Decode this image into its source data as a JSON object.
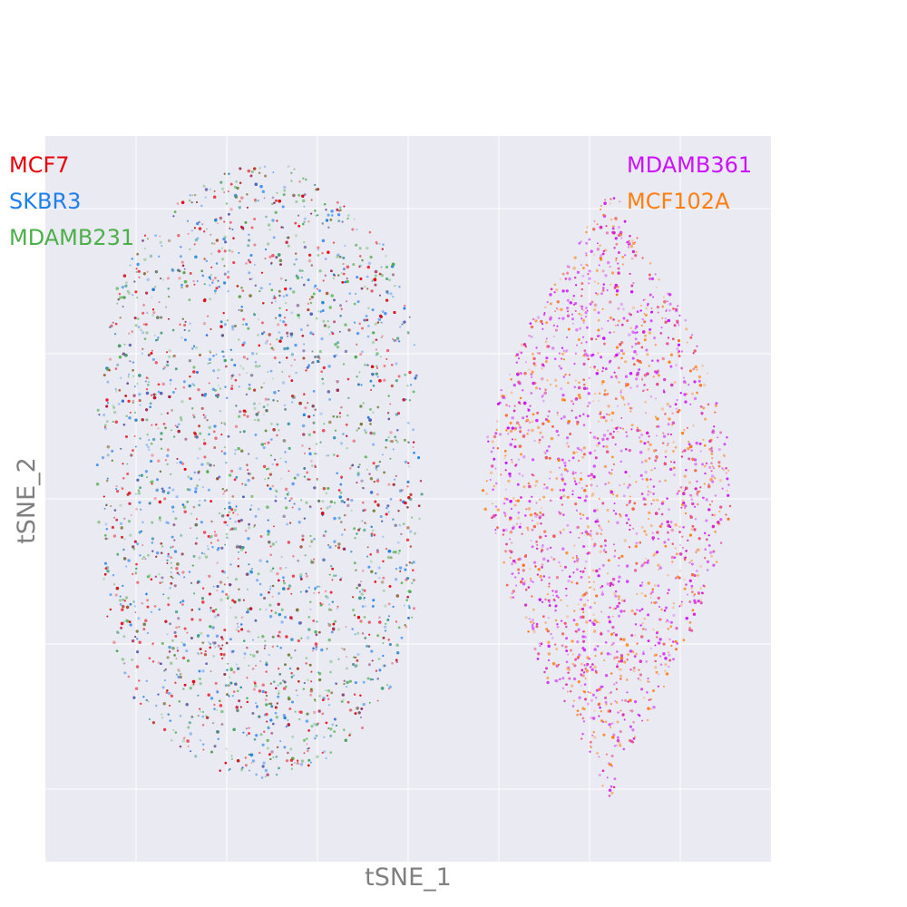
{
  "chart_data": {
    "type": "scatter",
    "title": "",
    "xlabel": "tSNE_1",
    "ylabel": "tSNE_2",
    "xlim": [
      -50,
      50
    ],
    "ylim": [
      -50,
      50
    ],
    "grid": true,
    "background": "#eaeaf2",
    "ticks_labeled": false,
    "x_gridlines": [
      -37.5,
      -25,
      -12.5,
      0,
      12.5,
      25,
      37.5
    ],
    "y_gridlines": [
      -40,
      -20,
      0,
      20,
      40
    ],
    "legend_left": {
      "placement": "top-left",
      "entries": [
        "MCF7",
        "SKBR3",
        "MDAMB231"
      ]
    },
    "legend_right": {
      "placement": "top-right",
      "entries": [
        "MDAMB361",
        "MCF102A"
      ]
    },
    "clusters": [
      {
        "name": "left",
        "center": [
          -20.5,
          4.0
        ],
        "half_width": 22.0,
        "half_height": 42.5,
        "series": [
          "MCF7",
          "SKBR3",
          "MDAMB231"
        ]
      },
      {
        "name": "right",
        "center": [
          27.5,
          0.5
        ],
        "half_width": 17.0,
        "half_height": 41.5,
        "series": [
          "MDAMB361",
          "MCF102A"
        ]
      }
    ],
    "series": [
      {
        "name": "MCF7",
        "color": "#e8000b",
        "cluster": "left",
        "count": 1600
      },
      {
        "name": "SKBR3",
        "color": "#1f7ff0",
        "cluster": "left",
        "count": 1600
      },
      {
        "name": "MDAMB231",
        "color": "#4daf4a",
        "cluster": "left",
        "count": 1600
      },
      {
        "name": "MDAMB361",
        "color": "#cc11ff",
        "cluster": "right",
        "count": 2000
      },
      {
        "name": "MCF102A",
        "color": "#ff7f0e",
        "cluster": "right",
        "count": 1700
      }
    ]
  }
}
